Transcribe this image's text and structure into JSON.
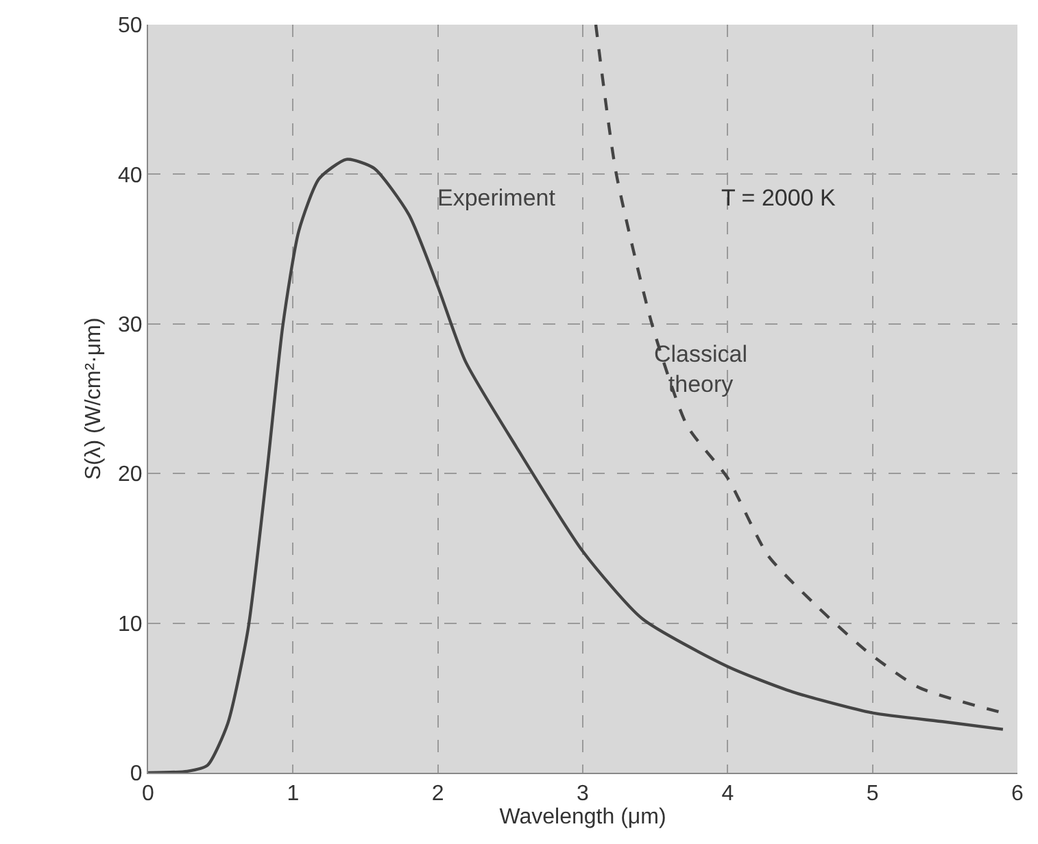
{
  "chart_data": {
    "type": "line",
    "xlabel": "Wavelength (μm)",
    "ylabel": "S(λ) (W/cm²·μm)",
    "xlim": [
      0,
      6
    ],
    "xticks": [
      0,
      1,
      2,
      3,
      4,
      5,
      6
    ],
    "ylim": [
      0,
      50
    ],
    "yticks": [
      0,
      10,
      20,
      30,
      40,
      50
    ],
    "grid": true,
    "legend": false,
    "marker": "none",
    "annotations": [
      "T = 2000 K"
    ],
    "series": [
      {
        "name": "Experiment",
        "color": "#444444",
        "line_style": "solid",
        "x": [
          0,
          0.27,
          0.41,
          0.55,
          0.69,
          0.82,
          0.93,
          1.04,
          1.18,
          1.37,
          1.56,
          1.8,
          2.0,
          2.19,
          2.54,
          3.0,
          3.41,
          4.0,
          4.45,
          5.0,
          5.5,
          5.9
        ],
        "values": [
          0,
          0.1,
          0.5,
          3.3,
          9.6,
          20.1,
          29.9,
          36.2,
          39.7,
          41.0,
          40.4,
          37.3,
          32.5,
          27.5,
          21.8,
          14.8,
          10.3,
          7.1,
          5.4,
          4.0,
          3.4,
          2.9
        ]
      },
      {
        "name": "Classical theory",
        "color": "#444444",
        "line_style": "dashed",
        "x": [
          3.09,
          3.23,
          3.48,
          3.72,
          4.0,
          4.28,
          4.63,
          4.95,
          5.32,
          5.9
        ],
        "values": [
          50,
          40.1,
          29.9,
          23.2,
          19.7,
          14.5,
          11.0,
          8.2,
          5.7,
          4.0
        ]
      }
    ]
  }
}
